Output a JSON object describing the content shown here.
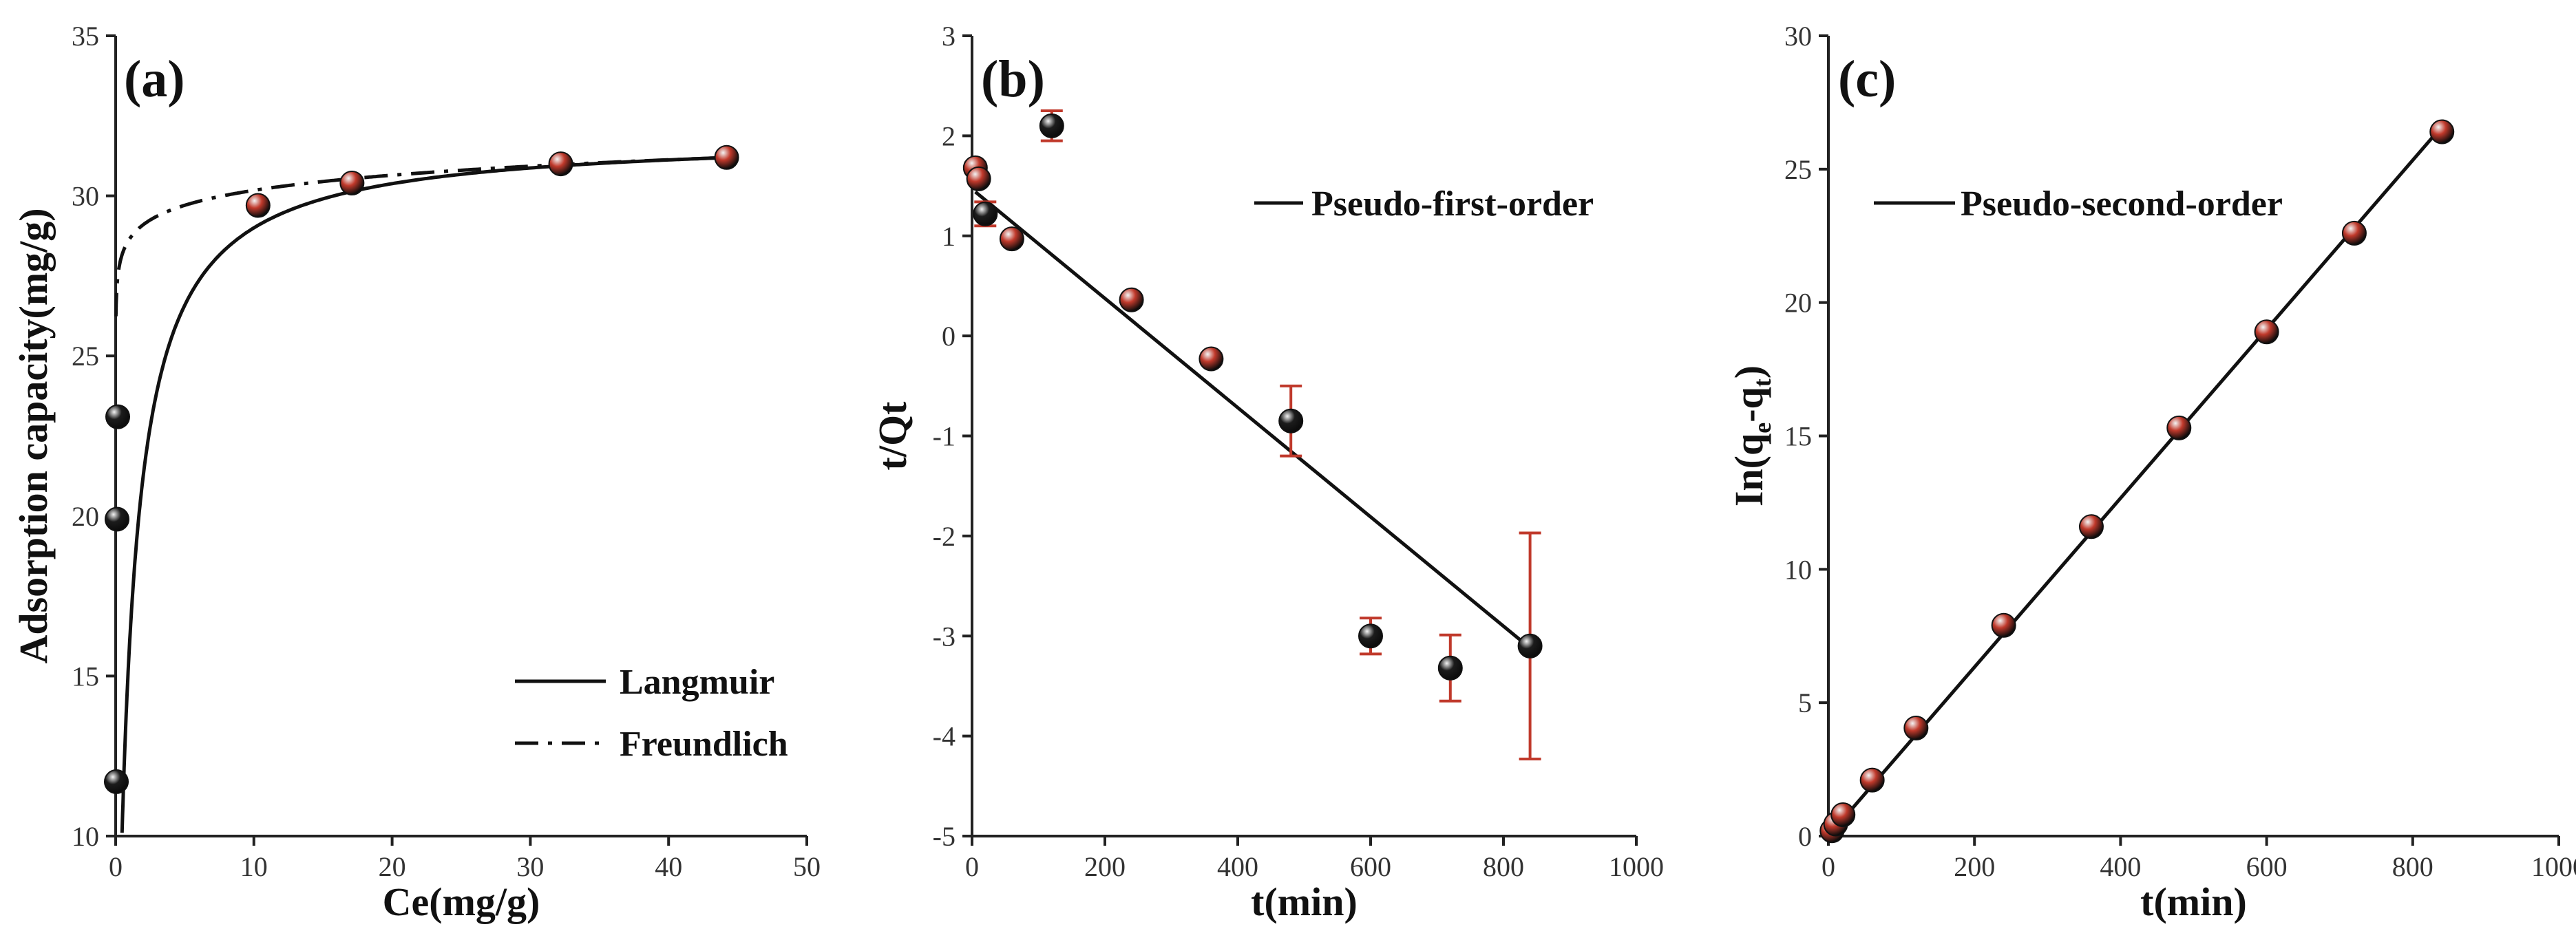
{
  "colors": {
    "marker_dark": "#1c1c1c",
    "marker_red": "#c0392b",
    "error_bar": "#c0392b",
    "line": "#111111"
  },
  "chart_data": [
    {
      "label": "(a)",
      "type": "scatter",
      "xlabel": "Ce(mg/g)",
      "ylabel": "Adsorption capacity(mg/g)",
      "xlim": [
        0,
        50
      ],
      "ylim": [
        10,
        35
      ],
      "xticks": [
        0,
        10,
        20,
        30,
        40,
        50
      ],
      "yticks": [
        10,
        15,
        20,
        25,
        30,
        35
      ],
      "points": [
        {
          "x": 0.05,
          "y": 11.7,
          "style": "dark"
        },
        {
          "x": 0.1,
          "y": 19.9,
          "style": "dark"
        },
        {
          "x": 0.15,
          "y": 23.1,
          "style": "dark"
        },
        {
          "x": 10.3,
          "y": 29.7,
          "style": "red"
        },
        {
          "x": 17.1,
          "y": 30.4,
          "style": "red"
        },
        {
          "x": 32.2,
          "y": 31.0,
          "style": "red"
        },
        {
          "x": 44.2,
          "y": 31.2,
          "style": "red"
        }
      ],
      "series": [
        {
          "name": "Langmuir",
          "style": "solid",
          "model": "langmuir",
          "qm": 31.9,
          "kl": 1.0
        },
        {
          "name": "Freundlich",
          "style": "dashdot",
          "model": "freundlich",
          "kf": 28.65,
          "n": 44.5
        }
      ],
      "legend_position": "bottom-right"
    },
    {
      "label": "(b)",
      "type": "scatter",
      "xlabel": "t(min)",
      "ylabel": "t/Qt",
      "xlim": [
        0,
        1000
      ],
      "ylim": [
        -5,
        3
      ],
      "xticks": [
        0,
        200,
        400,
        600,
        800,
        1000
      ],
      "yticks": [
        -5,
        -4,
        -3,
        -2,
        -1,
        0,
        1,
        2,
        3
      ],
      "points": [
        {
          "x": 5,
          "y": 1.68,
          "err": 0.05,
          "style": "red"
        },
        {
          "x": 10,
          "y": 1.57,
          "err": 0.05,
          "style": "red"
        },
        {
          "x": 20,
          "y": 1.22,
          "err": 0.12,
          "style": "dark"
        },
        {
          "x": 60,
          "y": 0.97,
          "err": 0.05,
          "style": "red"
        },
        {
          "x": 120,
          "y": 2.1,
          "err": 0.15,
          "style": "dark"
        },
        {
          "x": 240,
          "y": 0.36,
          "err": 0.04,
          "style": "red"
        },
        {
          "x": 360,
          "y": -0.23,
          "err": 0.05,
          "style": "red"
        },
        {
          "x": 480,
          "y": -0.85,
          "err": 0.35,
          "style": "dark"
        },
        {
          "x": 600,
          "y": -3.0,
          "err": 0.18,
          "style": "dark"
        },
        {
          "x": 720,
          "y": -3.32,
          "err": 0.33,
          "style": "dark"
        },
        {
          "x": 840,
          "y": -3.1,
          "err": 1.13,
          "style": "dark"
        }
      ],
      "series": [
        {
          "name": "Pseudo-first-order",
          "style": "solid",
          "model": "linear",
          "x0": 5,
          "y0": 1.44,
          "x1": 840,
          "y1": -3.12
        }
      ],
      "legend_position": "top-right"
    },
    {
      "label": "(c)",
      "type": "scatter",
      "xlabel": "t(min)",
      "ylabel_main": "In(q",
      "ylabel_sub1": "e",
      "ylabel_mid": "-q",
      "ylabel_sub2": "t",
      "ylabel_end": ")",
      "xlim": [
        0,
        1000
      ],
      "ylim": [
        0,
        30
      ],
      "xticks": [
        0,
        200,
        400,
        600,
        800,
        1000
      ],
      "yticks": [
        0,
        5,
        10,
        15,
        20,
        25,
        30
      ],
      "points": [
        {
          "x": 5,
          "y": 0.2,
          "style": "red"
        },
        {
          "x": 10,
          "y": 0.45,
          "style": "red"
        },
        {
          "x": 20,
          "y": 0.8,
          "style": "red"
        },
        {
          "x": 60,
          "y": 2.1,
          "style": "red"
        },
        {
          "x": 120,
          "y": 4.05,
          "style": "red"
        },
        {
          "x": 240,
          "y": 7.9,
          "style": "red"
        },
        {
          "x": 360,
          "y": 11.6,
          "style": "red"
        },
        {
          "x": 480,
          "y": 15.3,
          "style": "red"
        },
        {
          "x": 600,
          "y": 18.9,
          "style": "red"
        },
        {
          "x": 720,
          "y": 22.6,
          "style": "red"
        },
        {
          "x": 840,
          "y": 26.4,
          "style": "red"
        }
      ],
      "series": [
        {
          "name": "Pseudo-second-order",
          "style": "solid",
          "model": "linear",
          "x0": 0,
          "y0": 0.0,
          "x1": 840,
          "y1": 26.6
        }
      ],
      "legend_position": "top-left"
    }
  ]
}
